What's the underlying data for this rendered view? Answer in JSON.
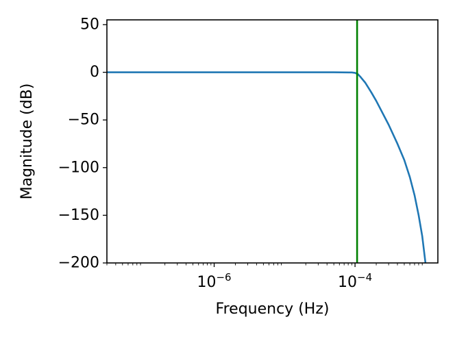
{
  "chart_data": {
    "type": "line",
    "xlabel": "Frequency (Hz)",
    "ylabel": "Magnitude (dB)",
    "xscale": "log",
    "xlim": [
      3e-08,
      0.0015
    ],
    "ylim": [
      -200,
      55
    ],
    "grid": false,
    "x_ticks": [
      {
        "value": 1e-06,
        "base": "10",
        "exp": "−6"
      },
      {
        "value": 0.0001,
        "base": "10",
        "exp": "−4"
      }
    ],
    "y_ticks": [
      {
        "value": 50,
        "label": "50"
      },
      {
        "value": 0,
        "label": "0"
      },
      {
        "value": -50,
        "label": "−50"
      },
      {
        "value": -100,
        "label": "−100"
      },
      {
        "value": -150,
        "label": "−150"
      },
      {
        "value": -200,
        "label": "−200"
      }
    ],
    "series": [
      {
        "color": "#1f77b4",
        "points": [
          [
            3e-08,
            0
          ],
          [
            1e-07,
            0
          ],
          [
            1e-06,
            0
          ],
          [
            1e-05,
            0
          ],
          [
            5e-05,
            0
          ],
          [
            9e-05,
            -0.2
          ],
          [
            0.0001,
            -0.6
          ],
          [
            0.00011,
            -2
          ],
          [
            0.00012,
            -5
          ],
          [
            0.00014,
            -11
          ],
          [
            0.00017,
            -21
          ],
          [
            0.0002,
            -30
          ],
          [
            0.0003,
            -55
          ],
          [
            0.0004,
            -75
          ],
          [
            0.0005,
            -92
          ],
          [
            0.0006,
            -110
          ],
          [
            0.0007,
            -129
          ],
          [
            0.0008,
            -150
          ],
          [
            0.0009,
            -172
          ],
          [
            0.001,
            -200
          ]
        ]
      }
    ],
    "vline": {
      "x": 0.000107,
      "color": "#008000"
    }
  }
}
